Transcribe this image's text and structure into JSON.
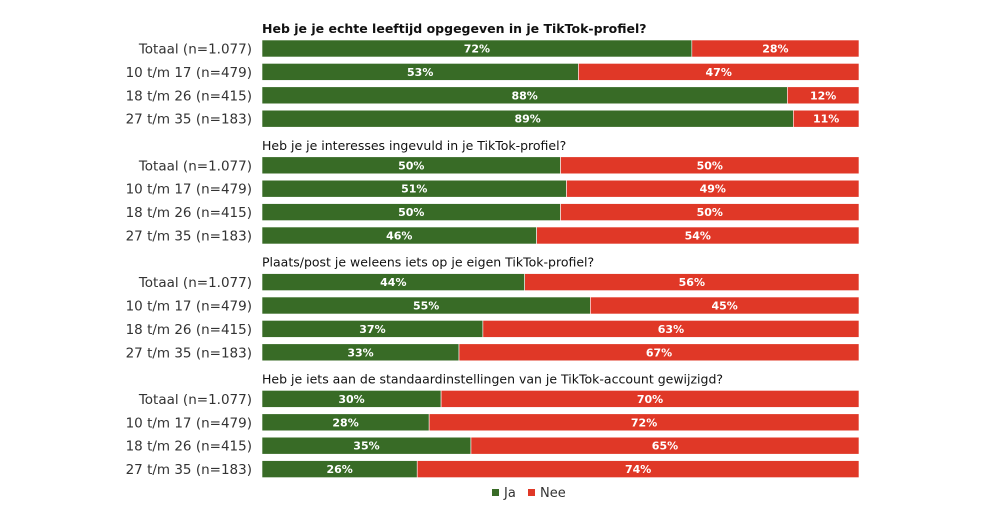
{
  "chart_data": {
    "type": "bar",
    "orientation": "horizontal",
    "stacked": "100%",
    "title": "",
    "xlabel": "",
    "ylabel": "",
    "xlim": [
      0,
      100
    ],
    "grid": false,
    "legend": {
      "position": "bottom-center",
      "entries": [
        {
          "name": "Ja",
          "color": "#386b26"
        },
        {
          "name": "Nee",
          "color": "#e03827"
        }
      ]
    },
    "categories": [
      "Totaal (n=1.077)",
      "10 t/m 17 (n=479)",
      "18 t/m 26 (n=415)",
      "27 t/m 35 (n=183)"
    ],
    "panels": [
      {
        "title": "Heb je je echte leeftijd opgegeven in je TikTok-profiel?",
        "title_bold": true,
        "series": [
          {
            "name": "Ja",
            "values": [
              72,
              53,
              88,
              89
            ]
          },
          {
            "name": "Nee",
            "values": [
              28,
              47,
              12,
              11
            ]
          }
        ]
      },
      {
        "title": "Heb je je interesses ingevuld in je TikTok-profiel?",
        "title_bold": false,
        "series": [
          {
            "name": "Ja",
            "values": [
              50,
              51,
              50,
              46
            ]
          },
          {
            "name": "Nee",
            "values": [
              50,
              49,
              50,
              54
            ]
          }
        ]
      },
      {
        "title": "Plaats/post je weleens iets op je eigen TikTok-profiel?",
        "title_bold": false,
        "series": [
          {
            "name": "Ja",
            "values": [
              44,
              55,
              37,
              33
            ]
          },
          {
            "name": "Nee",
            "values": [
              56,
              45,
              63,
              67
            ]
          }
        ]
      },
      {
        "title": "Heb je iets aan de standaardinstellingen van je TikTok-account gewijzigd?",
        "title_bold": false,
        "series": [
          {
            "name": "Ja",
            "values": [
              30,
              28,
              35,
              26
            ]
          },
          {
            "name": "Nee",
            "values": [
              70,
              72,
              65,
              74
            ]
          }
        ]
      }
    ],
    "value_suffix": "%"
  }
}
